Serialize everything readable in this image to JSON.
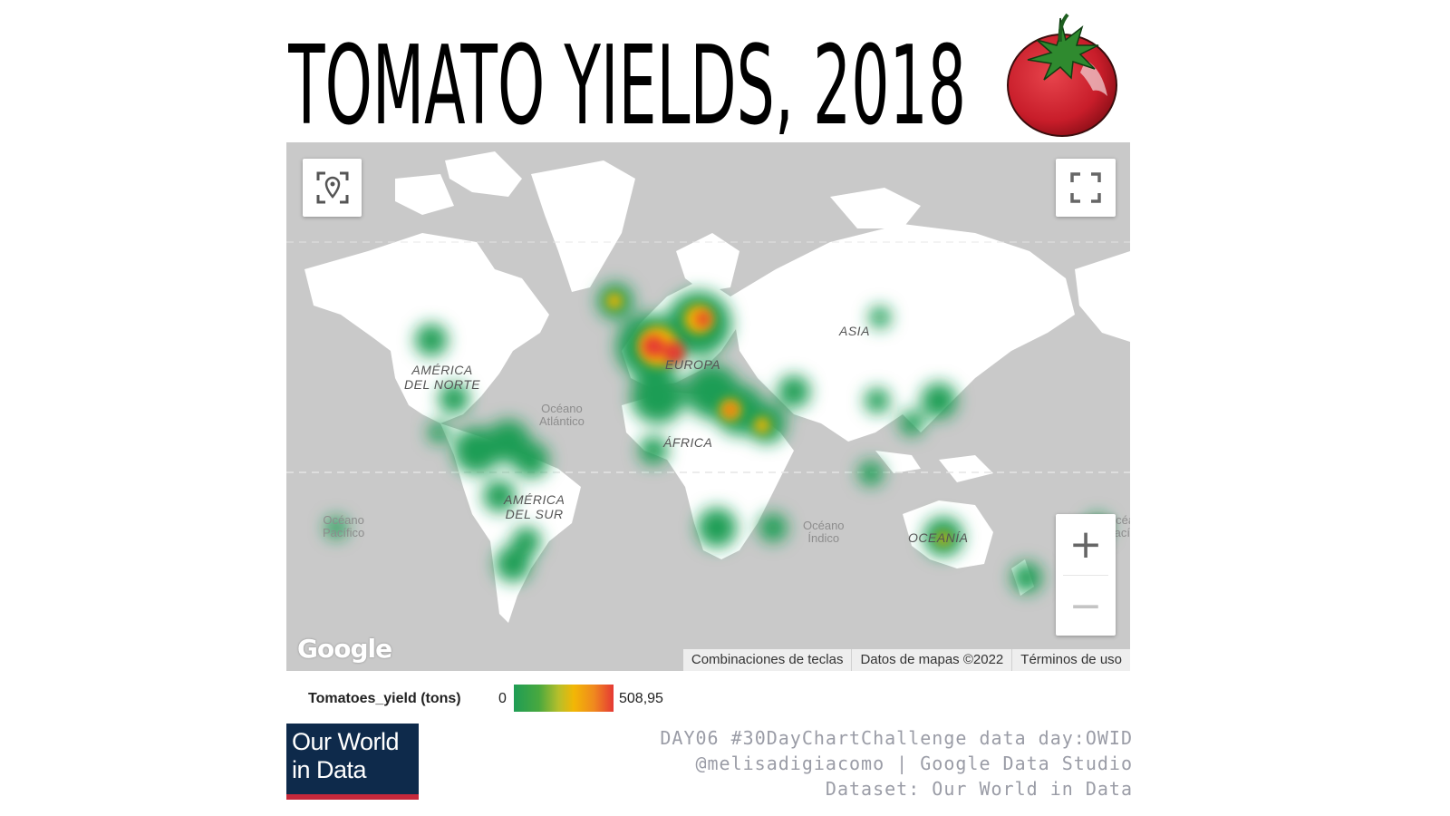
{
  "title": "TOMATO YIELDS, 2018",
  "map": {
    "labels": {
      "north_america": "AMÉRICA\nDEL NORTE",
      "south_america": "AMÉRICA\nDEL SUR",
      "europe": "EUROPA",
      "africa": "ÁFRICA",
      "asia": "ASIA",
      "oceania": "OCEANÍA"
    },
    "oceans": {
      "atlantic": "Océano\nAtlántico",
      "pacific": "Océano\nPacífico",
      "indian": "Océano\nÍndico",
      "pacific_right": "Océano\nPacífico"
    },
    "controls": {
      "locate_icon": "locate-pin-icon",
      "fullscreen_icon": "fullscreen-icon",
      "zoom_in": "+",
      "zoom_out": "−"
    },
    "attribution": {
      "shortcuts": "Combinaciones de teclas",
      "map_data": "Datos de mapas ©2022",
      "terms": "Términos de uso"
    },
    "logo": "Google"
  },
  "legend": {
    "field": "Tomatoes_yield (tons)",
    "min": "0",
    "max": "508,95",
    "gradient_colors": [
      "#1f9d55",
      "#f2b705",
      "#e53935"
    ]
  },
  "source_logo": {
    "line1": "Our World",
    "line2": "in Data"
  },
  "credits": {
    "line1": "DAY06 #30DayChartChallenge data day:OWID",
    "line2": "@melisadigiacomo | Google Data Studio",
    "line3": "Dataset: Our World in Data"
  }
}
